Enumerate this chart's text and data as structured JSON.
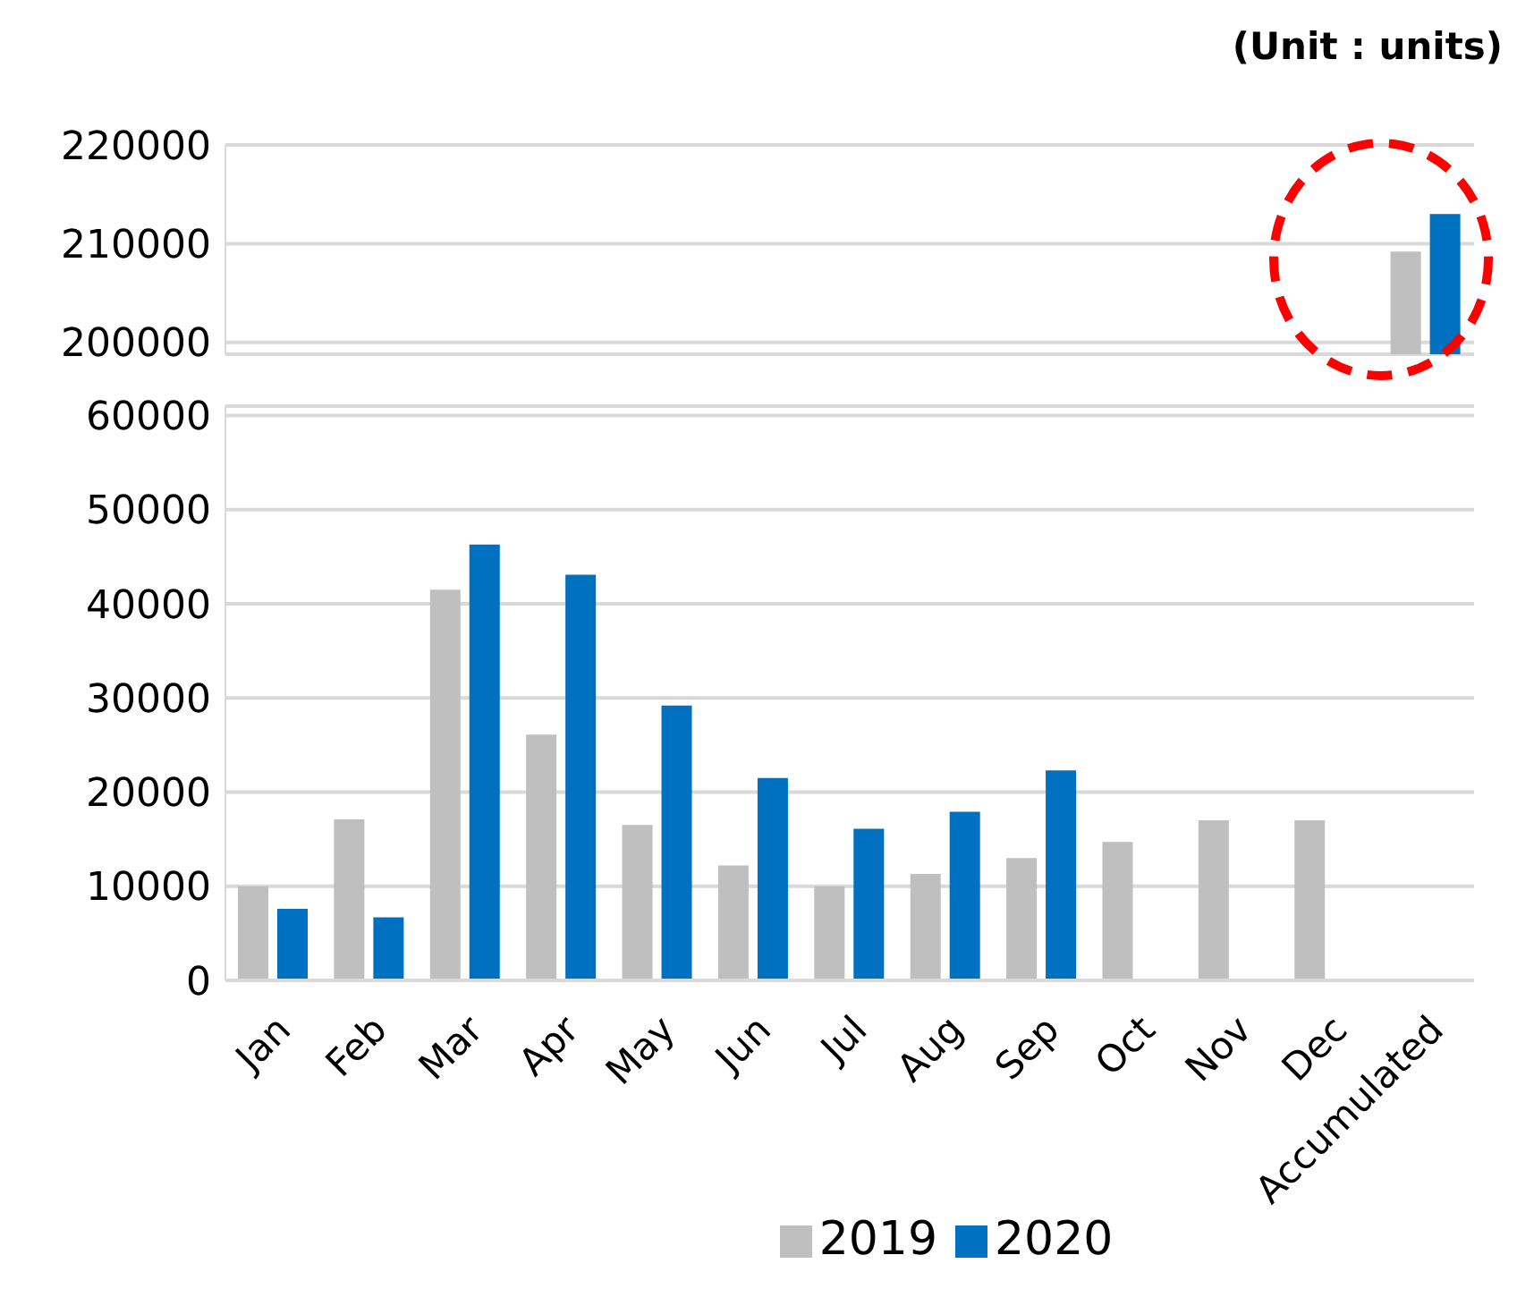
{
  "chart_data": [
    {
      "type": "bar",
      "annotations": [
        "(Unit : units)"
      ],
      "categories": [
        null,
        null,
        null,
        null,
        null,
        null,
        null,
        null,
        null,
        null,
        null,
        null,
        null
      ],
      "series": [
        {
          "color": "#bfbfbf",
          "values": [
            null,
            null,
            null,
            null,
            null,
            null,
            null,
            null,
            null,
            null,
            null,
            null,
            209200
          ]
        },
        {
          "color": "#0070c0",
          "values": [
            null,
            null,
            null,
            null,
            null,
            null,
            null,
            null,
            null,
            null,
            null,
            null,
            213000
          ]
        }
      ],
      "ylim": [
        198800,
        220000
      ],
      "yticks": [
        200000,
        210000,
        220000
      ],
      "grid": "y",
      "tick_labels": "y"
    },
    {
      "type": "bar",
      "categories": [
        "Jan",
        "Feb",
        "Mar",
        "Apr",
        "May",
        "Jun",
        "Jul",
        "Aug",
        "Sep",
        "Oct",
        "Nov",
        "Dec",
        "Accumulated"
      ],
      "series": [
        {
          "name": "2019",
          "color": "#bfbfbf",
          "values": [
            10000,
            17100,
            41500,
            26100,
            16500,
            12200,
            10000,
            11300,
            13000,
            14700,
            17000,
            17000,
            null
          ]
        },
        {
          "name": "2020",
          "color": "#0070c0",
          "values": [
            7600,
            6700,
            46300,
            43100,
            29200,
            21500,
            16100,
            17900,
            22300,
            null,
            null,
            null,
            null
          ]
        }
      ],
      "ylim": [
        0,
        61000
      ],
      "yticks": [
        0,
        10000,
        20000,
        30000,
        40000,
        50000,
        60000
      ],
      "grid": "y",
      "legend": "bottom"
    }
  ]
}
